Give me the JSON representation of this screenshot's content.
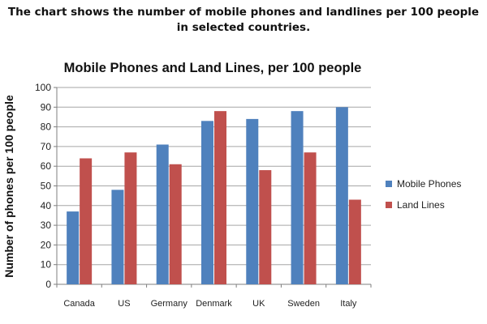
{
  "caption": {
    "line1": "The chart shows the number of mobile phones and landlines per 100 people",
    "line2": "in selected countries."
  },
  "chart_data": {
    "type": "bar",
    "title": "Mobile Phones and Land Lines, per 100 people",
    "xlabel": "",
    "ylabel": "Number of phones per 100 people",
    "ylim": [
      0,
      100
    ],
    "yticks": [
      0,
      10,
      20,
      30,
      40,
      50,
      60,
      70,
      80,
      90,
      100
    ],
    "grid": true,
    "legend_position": "right",
    "categories": [
      "Canada",
      "US",
      "Germany",
      "Denmark",
      "UK",
      "Sweden",
      "Italy"
    ],
    "series": [
      {
        "name": "Mobile Phones",
        "color": "#4F81BD",
        "values": [
          37,
          48,
          71,
          83,
          84,
          88,
          90
        ]
      },
      {
        "name": "Land Lines",
        "color": "#C0504D",
        "values": [
          64,
          67,
          61,
          88,
          58,
          67,
          43
        ]
      }
    ]
  }
}
